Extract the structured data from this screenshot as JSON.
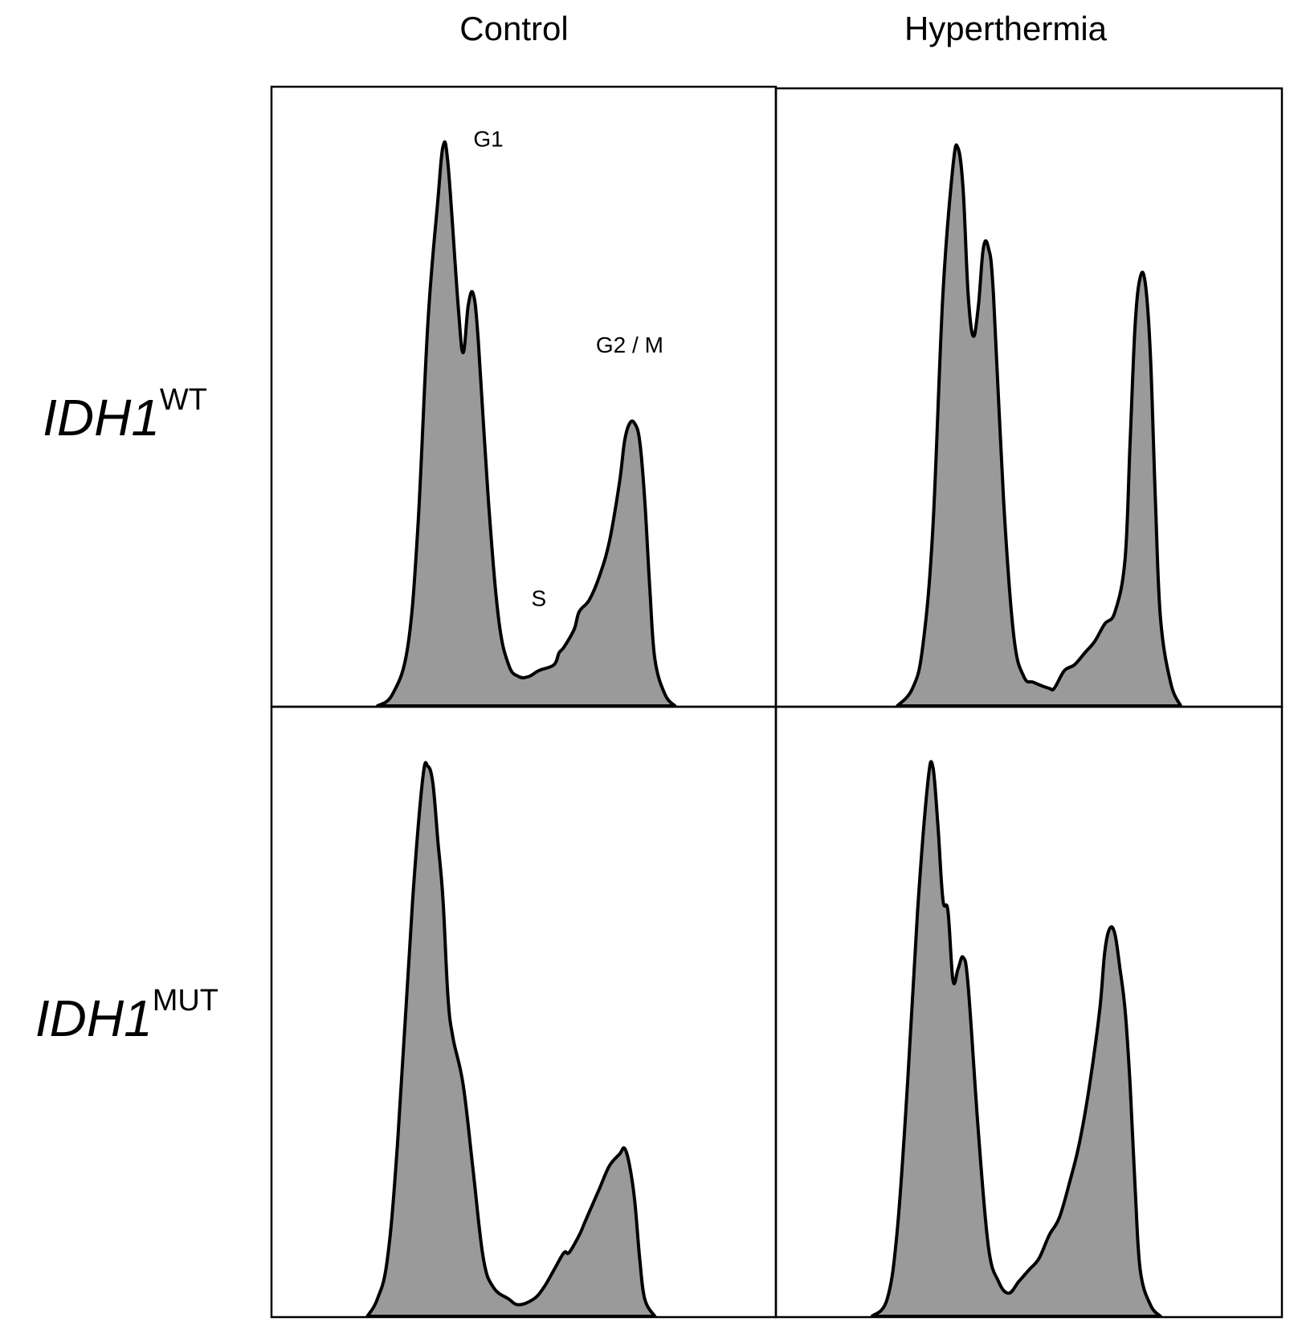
{
  "columns": [
    "Control",
    "Hyperthermia"
  ],
  "rows": [
    {
      "label": "IDH1",
      "superscript": "WT"
    },
    {
      "label": "IDH1",
      "superscript": "MUT"
    }
  ],
  "colors": {
    "fill": "#9a9a9a",
    "stroke": "#000000",
    "frame": "#000000"
  },
  "chart_data": [
    {
      "type": "area",
      "name": "IDH1 WT - Control",
      "xlim": [
        0,
        100
      ],
      "ylim": [
        0,
        100
      ],
      "annotations": [
        {
          "text": "G1",
          "x": 43,
          "y": 95
        },
        {
          "text": "S",
          "x": 53,
          "y": 17
        },
        {
          "text": "G2 / M",
          "x": 71,
          "y": 60
        }
      ],
      "points": [
        [
          21,
          0
        ],
        [
          24,
          2
        ],
        [
          27,
          10
        ],
        [
          29,
          30
        ],
        [
          31,
          65
        ],
        [
          33,
          86
        ],
        [
          34,
          95
        ],
        [
          35,
          92
        ],
        [
          37,
          68
        ],
        [
          38,
          60
        ],
        [
          39,
          68
        ],
        [
          40,
          70
        ],
        [
          41,
          62
        ],
        [
          43,
          35
        ],
        [
          45,
          15
        ],
        [
          47,
          7
        ],
        [
          49,
          5
        ],
        [
          51,
          5
        ],
        [
          53,
          6
        ],
        [
          56,
          7
        ],
        [
          57,
          9
        ],
        [
          58,
          10
        ],
        [
          60,
          13
        ],
        [
          61,
          16
        ],
        [
          63,
          18
        ],
        [
          65,
          22
        ],
        [
          67,
          28
        ],
        [
          69,
          38
        ],
        [
          70,
          45
        ],
        [
          71,
          48
        ],
        [
          72,
          48
        ],
        [
          73,
          45
        ],
        [
          74,
          35
        ],
        [
          75,
          20
        ],
        [
          76,
          8
        ],
        [
          78,
          2
        ],
        [
          80,
          0
        ]
      ]
    },
    {
      "type": "area",
      "name": "IDH1 WT - Hyperthermia",
      "xlim": [
        0,
        100
      ],
      "ylim": [
        0,
        100
      ],
      "annotations": [],
      "points": [
        [
          24,
          0
        ],
        [
          27,
          3
        ],
        [
          29,
          10
        ],
        [
          31,
          30
        ],
        [
          33,
          70
        ],
        [
          35,
          92
        ],
        [
          36,
          95
        ],
        [
          37,
          88
        ],
        [
          38,
          70
        ],
        [
          39,
          63
        ],
        [
          40,
          68
        ],
        [
          41,
          78
        ],
        [
          42,
          78
        ],
        [
          43,
          70
        ],
        [
          45,
          35
        ],
        [
          47,
          12
        ],
        [
          49,
          5
        ],
        [
          51,
          4
        ],
        [
          54,
          3
        ],
        [
          55,
          3
        ],
        [
          57,
          6
        ],
        [
          59,
          7
        ],
        [
          61,
          9
        ],
        [
          63,
          11
        ],
        [
          65,
          14
        ],
        [
          67,
          16
        ],
        [
          69,
          25
        ],
        [
          70,
          45
        ],
        [
          71,
          65
        ],
        [
          72,
          73
        ],
        [
          73,
          72
        ],
        [
          74,
          60
        ],
        [
          75,
          35
        ],
        [
          76,
          15
        ],
        [
          78,
          4
        ],
        [
          80,
          0
        ]
      ]
    },
    {
      "type": "area",
      "name": "IDH1 MUT - Control",
      "xlim": [
        0,
        100
      ],
      "ylim": [
        0,
        100
      ],
      "annotations": [],
      "points": [
        [
          19,
          0
        ],
        [
          21,
          3
        ],
        [
          23,
          10
        ],
        [
          25,
          30
        ],
        [
          28,
          72
        ],
        [
          30,
          93
        ],
        [
          31,
          95
        ],
        [
          32,
          92
        ],
        [
          33,
          82
        ],
        [
          34,
          72
        ],
        [
          35,
          55
        ],
        [
          36,
          48
        ],
        [
          38,
          40
        ],
        [
          40,
          25
        ],
        [
          42,
          10
        ],
        [
          44,
          5
        ],
        [
          47,
          3
        ],
        [
          49,
          2
        ],
        [
          52,
          3
        ],
        [
          54,
          5
        ],
        [
          56,
          8
        ],
        [
          58,
          11
        ],
        [
          59,
          11
        ],
        [
          61,
          14
        ],
        [
          62,
          16
        ],
        [
          63,
          18
        ],
        [
          65,
          22
        ],
        [
          67,
          26
        ],
        [
          69,
          28
        ],
        [
          70,
          29
        ],
        [
          71,
          26
        ],
        [
          72,
          20
        ],
        [
          73,
          10
        ],
        [
          74,
          3
        ],
        [
          76,
          0
        ]
      ]
    },
    {
      "type": "area",
      "name": "IDH1 MUT - Hyperthermia",
      "xlim": [
        0,
        100
      ],
      "ylim": [
        0,
        100
      ],
      "annotations": [],
      "points": [
        [
          19,
          0
        ],
        [
          22,
          3
        ],
        [
          24,
          15
        ],
        [
          26,
          40
        ],
        [
          28,
          70
        ],
        [
          30,
          92
        ],
        [
          31,
          95
        ],
        [
          32,
          85
        ],
        [
          33,
          72
        ],
        [
          34,
          70
        ],
        [
          35,
          58
        ],
        [
          36,
          60
        ],
        [
          37,
          62
        ],
        [
          38,
          57
        ],
        [
          40,
          32
        ],
        [
          42,
          12
        ],
        [
          44,
          6
        ],
        [
          46,
          4
        ],
        [
          48,
          6
        ],
        [
          50,
          8
        ],
        [
          52,
          10
        ],
        [
          54,
          14
        ],
        [
          56,
          17
        ],
        [
          58,
          23
        ],
        [
          60,
          30
        ],
        [
          62,
          40
        ],
        [
          64,
          53
        ],
        [
          65,
          63
        ],
        [
          66,
          67
        ],
        [
          67,
          66
        ],
        [
          68,
          60
        ],
        [
          69,
          53
        ],
        [
          70,
          40
        ],
        [
          71,
          22
        ],
        [
          72,
          8
        ],
        [
          74,
          2
        ],
        [
          76,
          0
        ]
      ]
    }
  ]
}
